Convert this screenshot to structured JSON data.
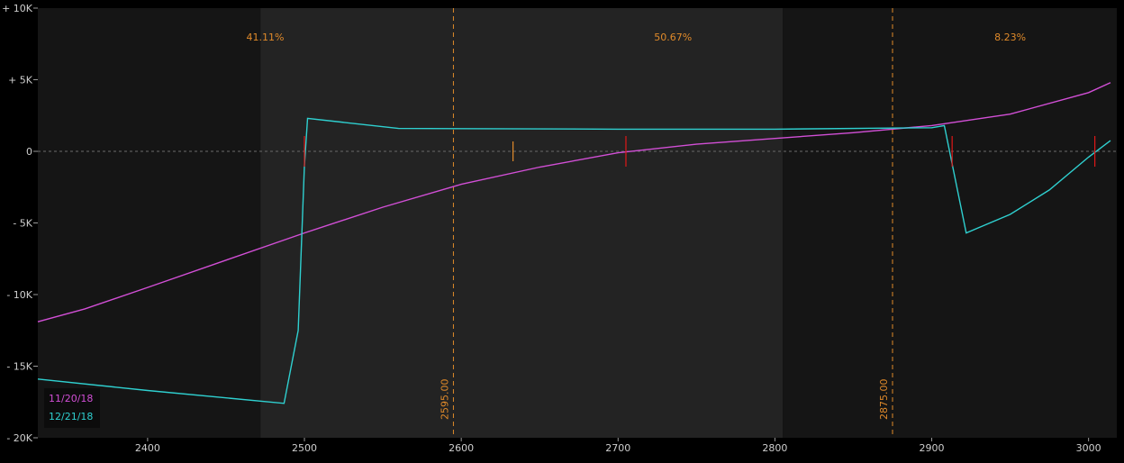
{
  "chart_data": {
    "type": "line",
    "xlim": [
      2330,
      3018
    ],
    "ylim": [
      -20000,
      10000
    ],
    "x_ticks": [
      2400,
      2500,
      2600,
      2700,
      2800,
      2900,
      3000
    ],
    "y_ticks": [
      {
        "value": 10000,
        "label": "+ 10K"
      },
      {
        "value": 5000,
        "label": "+ 5K"
      },
      {
        "value": 0,
        "label": "0"
      },
      {
        "value": -5000,
        "label": "- 5K"
      },
      {
        "value": -10000,
        "label": "- 10K"
      },
      {
        "value": -15000,
        "label": "- 15K"
      },
      {
        "value": -20000,
        "label": "- 20K"
      }
    ],
    "zones": [
      {
        "from": 2330,
        "to": 2472,
        "shade": "dark",
        "label": ""
      },
      {
        "from": 2472,
        "to": 2805,
        "shade": "light",
        "label": "41.11%",
        "label_x": 2472
      },
      {
        "from": 2805,
        "to": 3018,
        "shade": "dark",
        "label": ""
      }
    ],
    "zone_percents": [
      {
        "x": 2475,
        "label": "41.11%"
      },
      {
        "x": 2735,
        "label": "50.67%"
      },
      {
        "x": 2950,
        "label": "8.23%"
      }
    ],
    "vertical_lines": [
      {
        "x": 2595,
        "label": "2595.00"
      },
      {
        "x": 2875,
        "label": "2875.00"
      }
    ],
    "tick_marks": [
      {
        "x": 2500,
        "color": "#e01818"
      },
      {
        "x": 2633,
        "color": "#e08a2a"
      },
      {
        "x": 2705,
        "color": "#e01818"
      },
      {
        "x": 2913,
        "color": "#e01818"
      },
      {
        "x": 3004,
        "color": "#e01818"
      }
    ],
    "series": [
      {
        "name": "11/20/18",
        "color": "#d24fd6",
        "x": [
          2330,
          2360,
          2400,
          2450,
          2500,
          2550,
          2600,
          2650,
          2700,
          2750,
          2800,
          2850,
          2900,
          2950,
          3000,
          3014
        ],
        "y": [
          -11900,
          -11000,
          -9500,
          -7600,
          -5700,
          -3900,
          -2300,
          -1100,
          -100,
          500,
          900,
          1300,
          1800,
          2600,
          4100,
          4800
        ]
      },
      {
        "name": "12/21/18",
        "color": "#2fd0d0",
        "x": [
          2330,
          2400,
          2487,
          2496,
          2500,
          2502,
          2560,
          2700,
          2800,
          2900,
          2908,
          2922,
          2950,
          2975,
          3000,
          3014
        ],
        "y": [
          -15900,
          -16700,
          -17600,
          -12500,
          -1000,
          2300,
          1600,
          1550,
          1550,
          1650,
          1800,
          -5700,
          -4400,
          -2700,
          -400,
          750
        ]
      }
    ],
    "legend": {
      "position": "bottom-left"
    },
    "grid": false,
    "zero_line": true,
    "colors": {
      "background": "#000000",
      "plot_dark": "#151515",
      "plot_light": "#232323",
      "accent": "#e08a2a"
    }
  }
}
